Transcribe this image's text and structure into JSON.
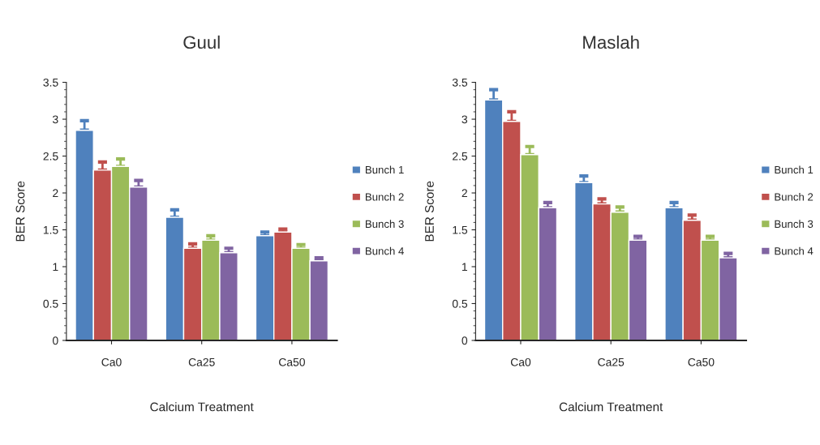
{
  "chart_data": [
    {
      "type": "bar",
      "title": "Guul",
      "xlabel": "Calcium Treatment",
      "ylabel": "BER Score",
      "categories": [
        "Ca0",
        "Ca25",
        "Ca50"
      ],
      "ylim": [
        0,
        3.5
      ],
      "yticks": [
        0,
        0.5,
        1,
        1.5,
        2,
        2.5,
        3,
        3.5
      ],
      "legend": "right",
      "grid": false,
      "series": [
        {
          "name": "Bunch 1",
          "color": "#4f81bd",
          "values": [
            2.85,
            1.67,
            1.42
          ],
          "errors": [
            [
              2.85,
              2.98
            ],
            [
              1.67,
              1.77
            ],
            [
              1.42,
              1.47
            ]
          ]
        },
        {
          "name": "Bunch 2",
          "color": "#c0504d",
          "values": [
            2.31,
            1.25,
            1.47
          ],
          "errors": [
            [
              2.31,
              2.42
            ],
            [
              1.25,
              1.31
            ],
            [
              1.47,
              1.51
            ]
          ]
        },
        {
          "name": "Bunch 3",
          "color": "#9bbb59",
          "values": [
            2.36,
            1.36,
            1.25
          ],
          "errors": [
            [
              2.36,
              2.46
            ],
            [
              1.36,
              1.42
            ],
            [
              1.25,
              1.3
            ]
          ]
        },
        {
          "name": "Bunch 4",
          "color": "#8064a2",
          "values": [
            2.08,
            1.19,
            1.08
          ],
          "errors": [
            [
              2.08,
              2.17
            ],
            [
              1.19,
              1.25
            ],
            [
              1.08,
              1.12
            ]
          ]
        }
      ]
    },
    {
      "type": "bar",
      "title": "Maslah",
      "xlabel": "Calcium Treatment",
      "ylabel": "BER Score",
      "categories": [
        "Ca0",
        "Ca25",
        "Ca50"
      ],
      "ylim": [
        0,
        3.5
      ],
      "yticks": [
        0,
        0.5,
        1,
        1.5,
        2,
        2.5,
        3,
        3.5
      ],
      "legend": "right",
      "grid": false,
      "series": [
        {
          "name": "Bunch 1",
          "color": "#4f81bd",
          "values": [
            3.26,
            2.14,
            1.8
          ],
          "errors": [
            [
              3.26,
              3.4
            ],
            [
              2.14,
              2.23
            ],
            [
              1.8,
              1.87
            ]
          ]
        },
        {
          "name": "Bunch 2",
          "color": "#c0504d",
          "values": [
            2.97,
            1.85,
            1.63
          ],
          "errors": [
            [
              2.97,
              3.1
            ],
            [
              1.85,
              1.92
            ],
            [
              1.63,
              1.7
            ]
          ]
        },
        {
          "name": "Bunch 3",
          "color": "#9bbb59",
          "values": [
            2.52,
            1.74,
            1.36
          ],
          "errors": [
            [
              2.52,
              2.63
            ],
            [
              1.74,
              1.81
            ],
            [
              1.36,
              1.41
            ]
          ]
        },
        {
          "name": "Bunch 4",
          "color": "#8064a2",
          "values": [
            1.8,
            1.36,
            1.12
          ],
          "errors": [
            [
              1.8,
              1.87
            ],
            [
              1.36,
              1.41
            ],
            [
              1.12,
              1.18
            ]
          ]
        }
      ]
    }
  ]
}
